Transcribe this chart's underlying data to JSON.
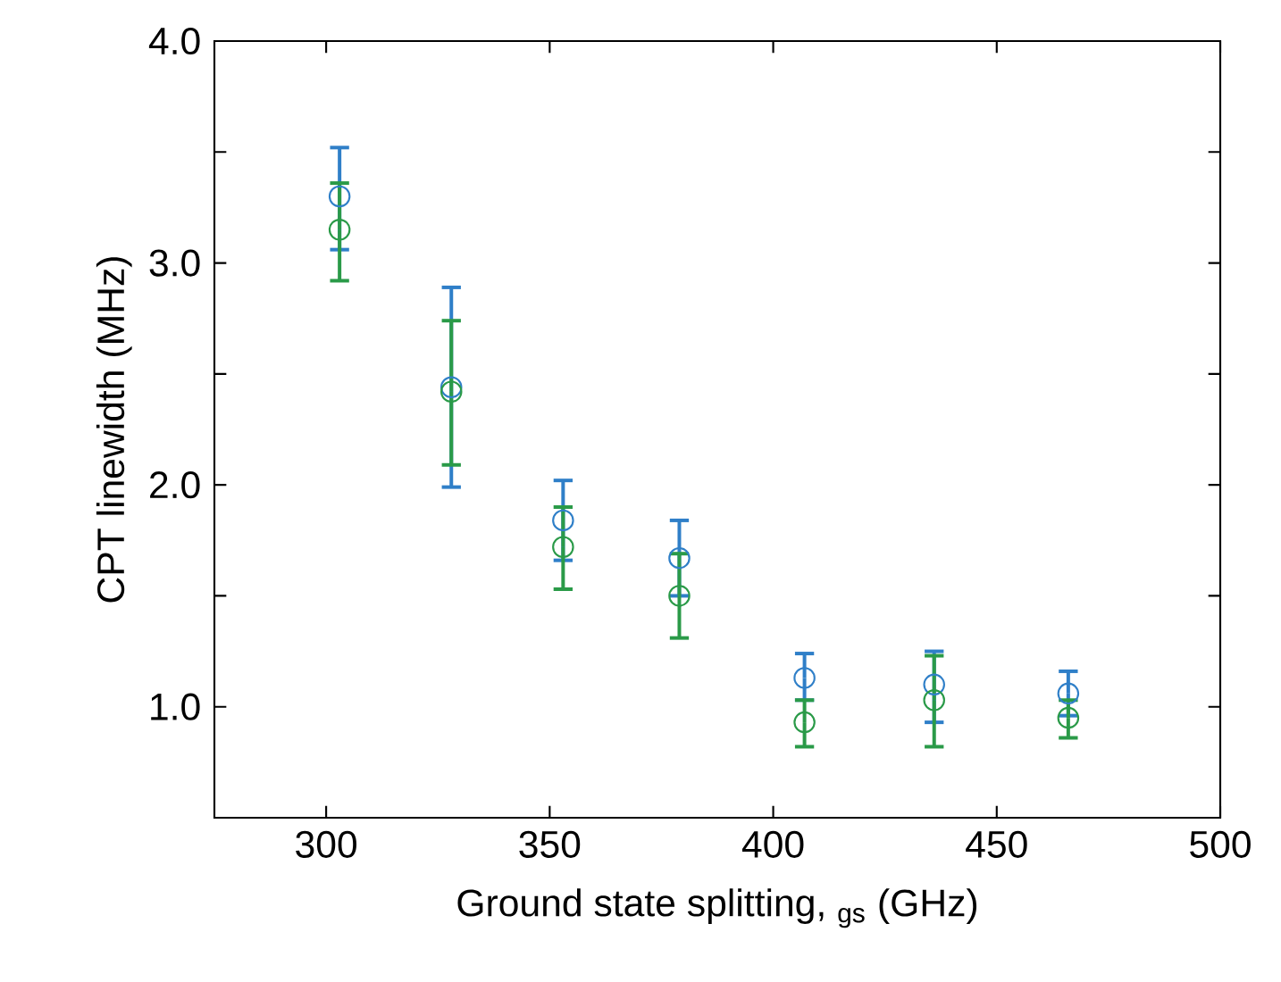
{
  "chart_data": {
    "type": "scatter",
    "xlabel": "Ground state splitting, $_{gs}$ (GHz)",
    "ylabel": "CPT linewidth (MHz)",
    "x": [
      303,
      328,
      353,
      379,
      407,
      436,
      466
    ],
    "series": [
      {
        "color": "#2f7fc8",
        "values": [
          3.3,
          2.44,
          1.84,
          1.67,
          1.13,
          1.1,
          1.06
        ],
        "errors": [
          [
            3.06,
            3.52
          ],
          [
            1.99,
            2.89
          ],
          [
            1.66,
            2.02
          ],
          [
            1.5,
            1.84
          ],
          [
            1.03,
            1.24
          ],
          [
            0.93,
            1.25
          ],
          [
            0.96,
            1.16
          ]
        ]
      },
      {
        "color": "#2a9a48",
        "values": [
          3.15,
          2.42,
          1.72,
          1.5,
          0.93,
          1.03,
          0.95
        ],
        "errors": [
          [
            2.92,
            3.36
          ],
          [
            2.09,
            2.74
          ],
          [
            1.53,
            1.9
          ],
          [
            1.31,
            1.69
          ],
          [
            0.82,
            1.03
          ],
          [
            0.82,
            1.23
          ],
          [
            0.86,
            1.03
          ]
        ]
      }
    ],
    "xlim": [
      275,
      500
    ],
    "xticks": [
      300,
      350,
      400,
      450,
      500
    ],
    "ylim": [
      0.5,
      4.0
    ],
    "yticks": [
      {
        "value": 1.0,
        "label": "1.0"
      },
      {
        "value": 1.5,
        "label": null
      },
      {
        "value": 2.0,
        "label": "2.0"
      },
      {
        "value": 2.5,
        "label": null
      },
      {
        "value": 3.0,
        "label": "3.0"
      },
      {
        "value": 3.5,
        "label": null
      },
      {
        "value": 4.0,
        "label": "4.0"
      }
    ],
    "marker": "circle",
    "grid": false
  }
}
